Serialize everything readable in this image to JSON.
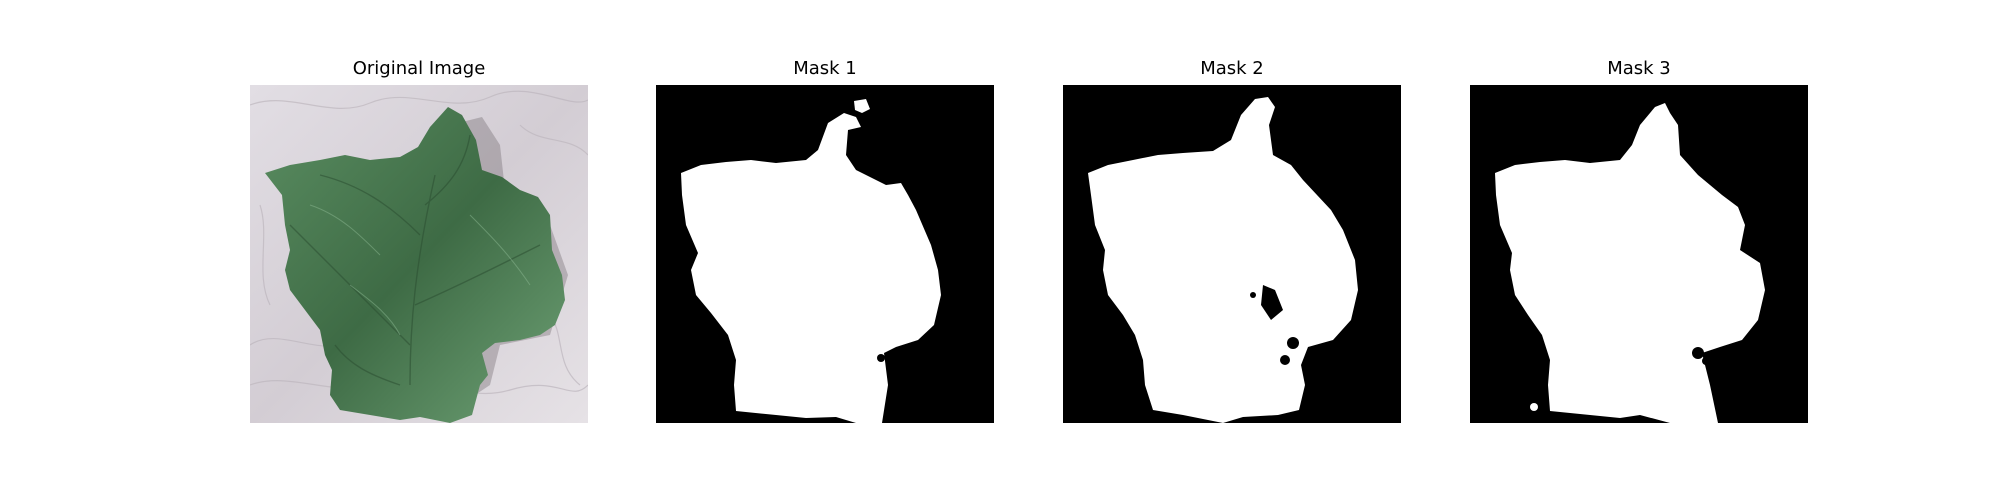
{
  "figure": {
    "panels": [
      {
        "title": "Original Image",
        "kind": "photo",
        "subject": "leaf"
      },
      {
        "title": "Mask 1",
        "kind": "mask"
      },
      {
        "title": "Mask 2",
        "kind": "mask"
      },
      {
        "title": "Mask 3",
        "kind": "mask"
      }
    ]
  },
  "colors": {
    "background": "#ffffff",
    "mask_fg": "#ffffff",
    "mask_bg": "#000000",
    "leaf_dark": "#3e6b45",
    "leaf_light": "#6fa276",
    "photo_bg": "#d7d2d8"
  }
}
